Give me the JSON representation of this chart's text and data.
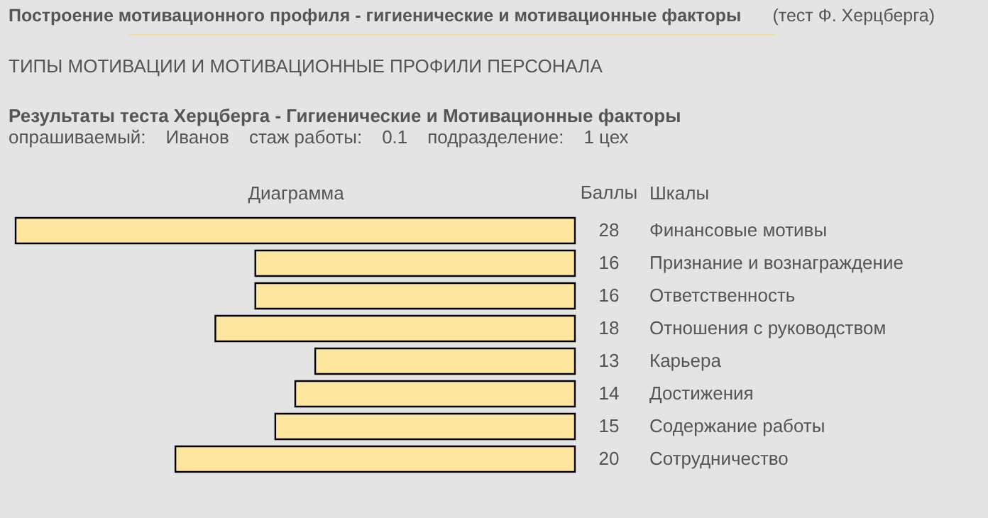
{
  "chart_data": {
    "type": "bar",
    "orientation": "horizontal",
    "title": "Построение мотивационного профиля - гигиенические и мотивационные факторы",
    "subtitle": "ТИПЫ МОТИВАЦИИ И МОТИВАЦИОННЫЕ ПРОФИЛИ ПЕРСОНАЛА",
    "annotations": [
      "(тест Ф. Херцберга)",
      "Результаты теста Херцберга - Гигиенические и Мотивационные факторы",
      "опрашиваемый:",
      "Иванов",
      "стаж работы:",
      "0.1",
      "подразделение:",
      "1 цех",
      "Баллы"
    ],
    "xlabel": "Диаграмма",
    "ylabel": "Шкалы",
    "categories": [
      "Финансовые мотивы",
      "Признание и вознаграждение",
      "Ответственность",
      "Отношения с руководством",
      "Карьера",
      "Достижения",
      "Содержание работы",
      "Сотрудничество"
    ],
    "values": [
      28,
      16,
      16,
      18,
      13,
      14,
      15,
      20
    ],
    "color": "#ffe69e",
    "xlim": [
      28,
      0
    ],
    "data_labels": true,
    "tick_labels": "y"
  }
}
